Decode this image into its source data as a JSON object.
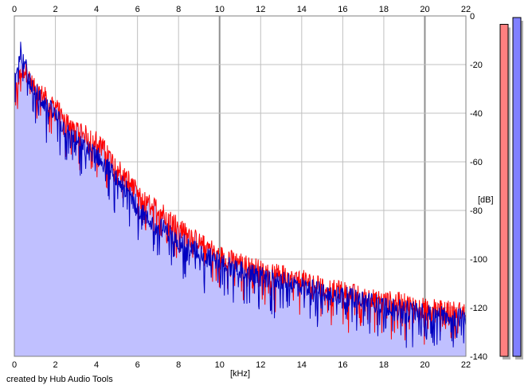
{
  "footer": {
    "credit": "created by Hub Audio Tools"
  },
  "colors": {
    "background": "#ffffff",
    "grid": "#c0c0c0",
    "grid_major": "#909090",
    "fill": "#c0c0ff",
    "left_channel": "#ff0000",
    "right_channel": "#0000c0",
    "meter_left": "#ff8080",
    "meter_right": "#8080ff",
    "meter_shadow": "#b0b0b0"
  },
  "chart_data": {
    "type": "line",
    "title": "",
    "xlabel": "[kHz]",
    "ylabel": "[dB]",
    "xlim": [
      0,
      22
    ],
    "ylim": [
      -140,
      0
    ],
    "x_ticks": [
      0,
      2,
      4,
      6,
      8,
      10,
      12,
      14,
      16,
      18,
      20,
      22
    ],
    "x_major_ticks": [
      10,
      20
    ],
    "y_ticks": [
      0,
      -20,
      -40,
      -60,
      -80,
      -100,
      -120,
      -140
    ],
    "grid": true,
    "fill_below_envelope": true,
    "series": [
      {
        "name": "",
        "color": "#ff0000",
        "x": [
          0.1,
          0.3,
          0.5,
          1,
          1.5,
          2,
          2.5,
          3,
          3.5,
          4,
          4.5,
          5,
          5.5,
          6,
          6.5,
          7,
          7.5,
          8,
          8.5,
          9,
          9.5,
          10,
          10.5,
          11,
          11.5,
          12,
          12.5,
          13,
          13.5,
          14,
          14.5,
          15,
          15.5,
          16,
          16.5,
          17,
          17.5,
          18,
          18.5,
          19,
          19.5,
          20,
          20.5,
          21,
          21.5,
          22
        ],
        "values": [
          -30,
          -24,
          -22,
          -30,
          -33,
          -37,
          -43,
          -45,
          -49,
          -51,
          -56,
          -62,
          -66,
          -73,
          -77,
          -79,
          -83,
          -86,
          -89,
          -93,
          -95,
          -98,
          -100,
          -101,
          -103,
          -104,
          -106,
          -106,
          -108,
          -108,
          -110,
          -111,
          -112,
          -113,
          -114,
          -115,
          -116,
          -117,
          -117,
          -118,
          -119,
          -120,
          -120,
          -121,
          -121,
          -122
        ]
      },
      {
        "name": "",
        "color": "#0000c0",
        "x": [
          0.1,
          0.3,
          0.5,
          1,
          1.5,
          2,
          2.5,
          3,
          3.5,
          4,
          4.5,
          5,
          5.5,
          6,
          6.5,
          7,
          7.5,
          8,
          8.5,
          9,
          9.5,
          10,
          10.5,
          11,
          11.5,
          12,
          12.5,
          13,
          13.5,
          14,
          14.5,
          15,
          15.5,
          16,
          16.5,
          17,
          17.5,
          18,
          18.5,
          19,
          19.5,
          20,
          20.5,
          21,
          21.5,
          22
        ],
        "values": [
          -26,
          -14,
          -20,
          -31,
          -36,
          -41,
          -47,
          -51,
          -55,
          -57,
          -62,
          -67,
          -72,
          -78,
          -84,
          -86,
          -89,
          -92,
          -95,
          -97,
          -99,
          -101,
          -103,
          -104,
          -106,
          -107,
          -108,
          -109,
          -110,
          -111,
          -112,
          -113,
          -114,
          -115,
          -116,
          -117,
          -118,
          -119,
          -120,
          -121,
          -121,
          -122,
          -123,
          -123,
          -124,
          -124
        ]
      }
    ]
  },
  "level_meters": [
    {
      "channel": "left",
      "level": 0.98
    },
    {
      "channel": "right",
      "level": 1.0
    }
  ]
}
